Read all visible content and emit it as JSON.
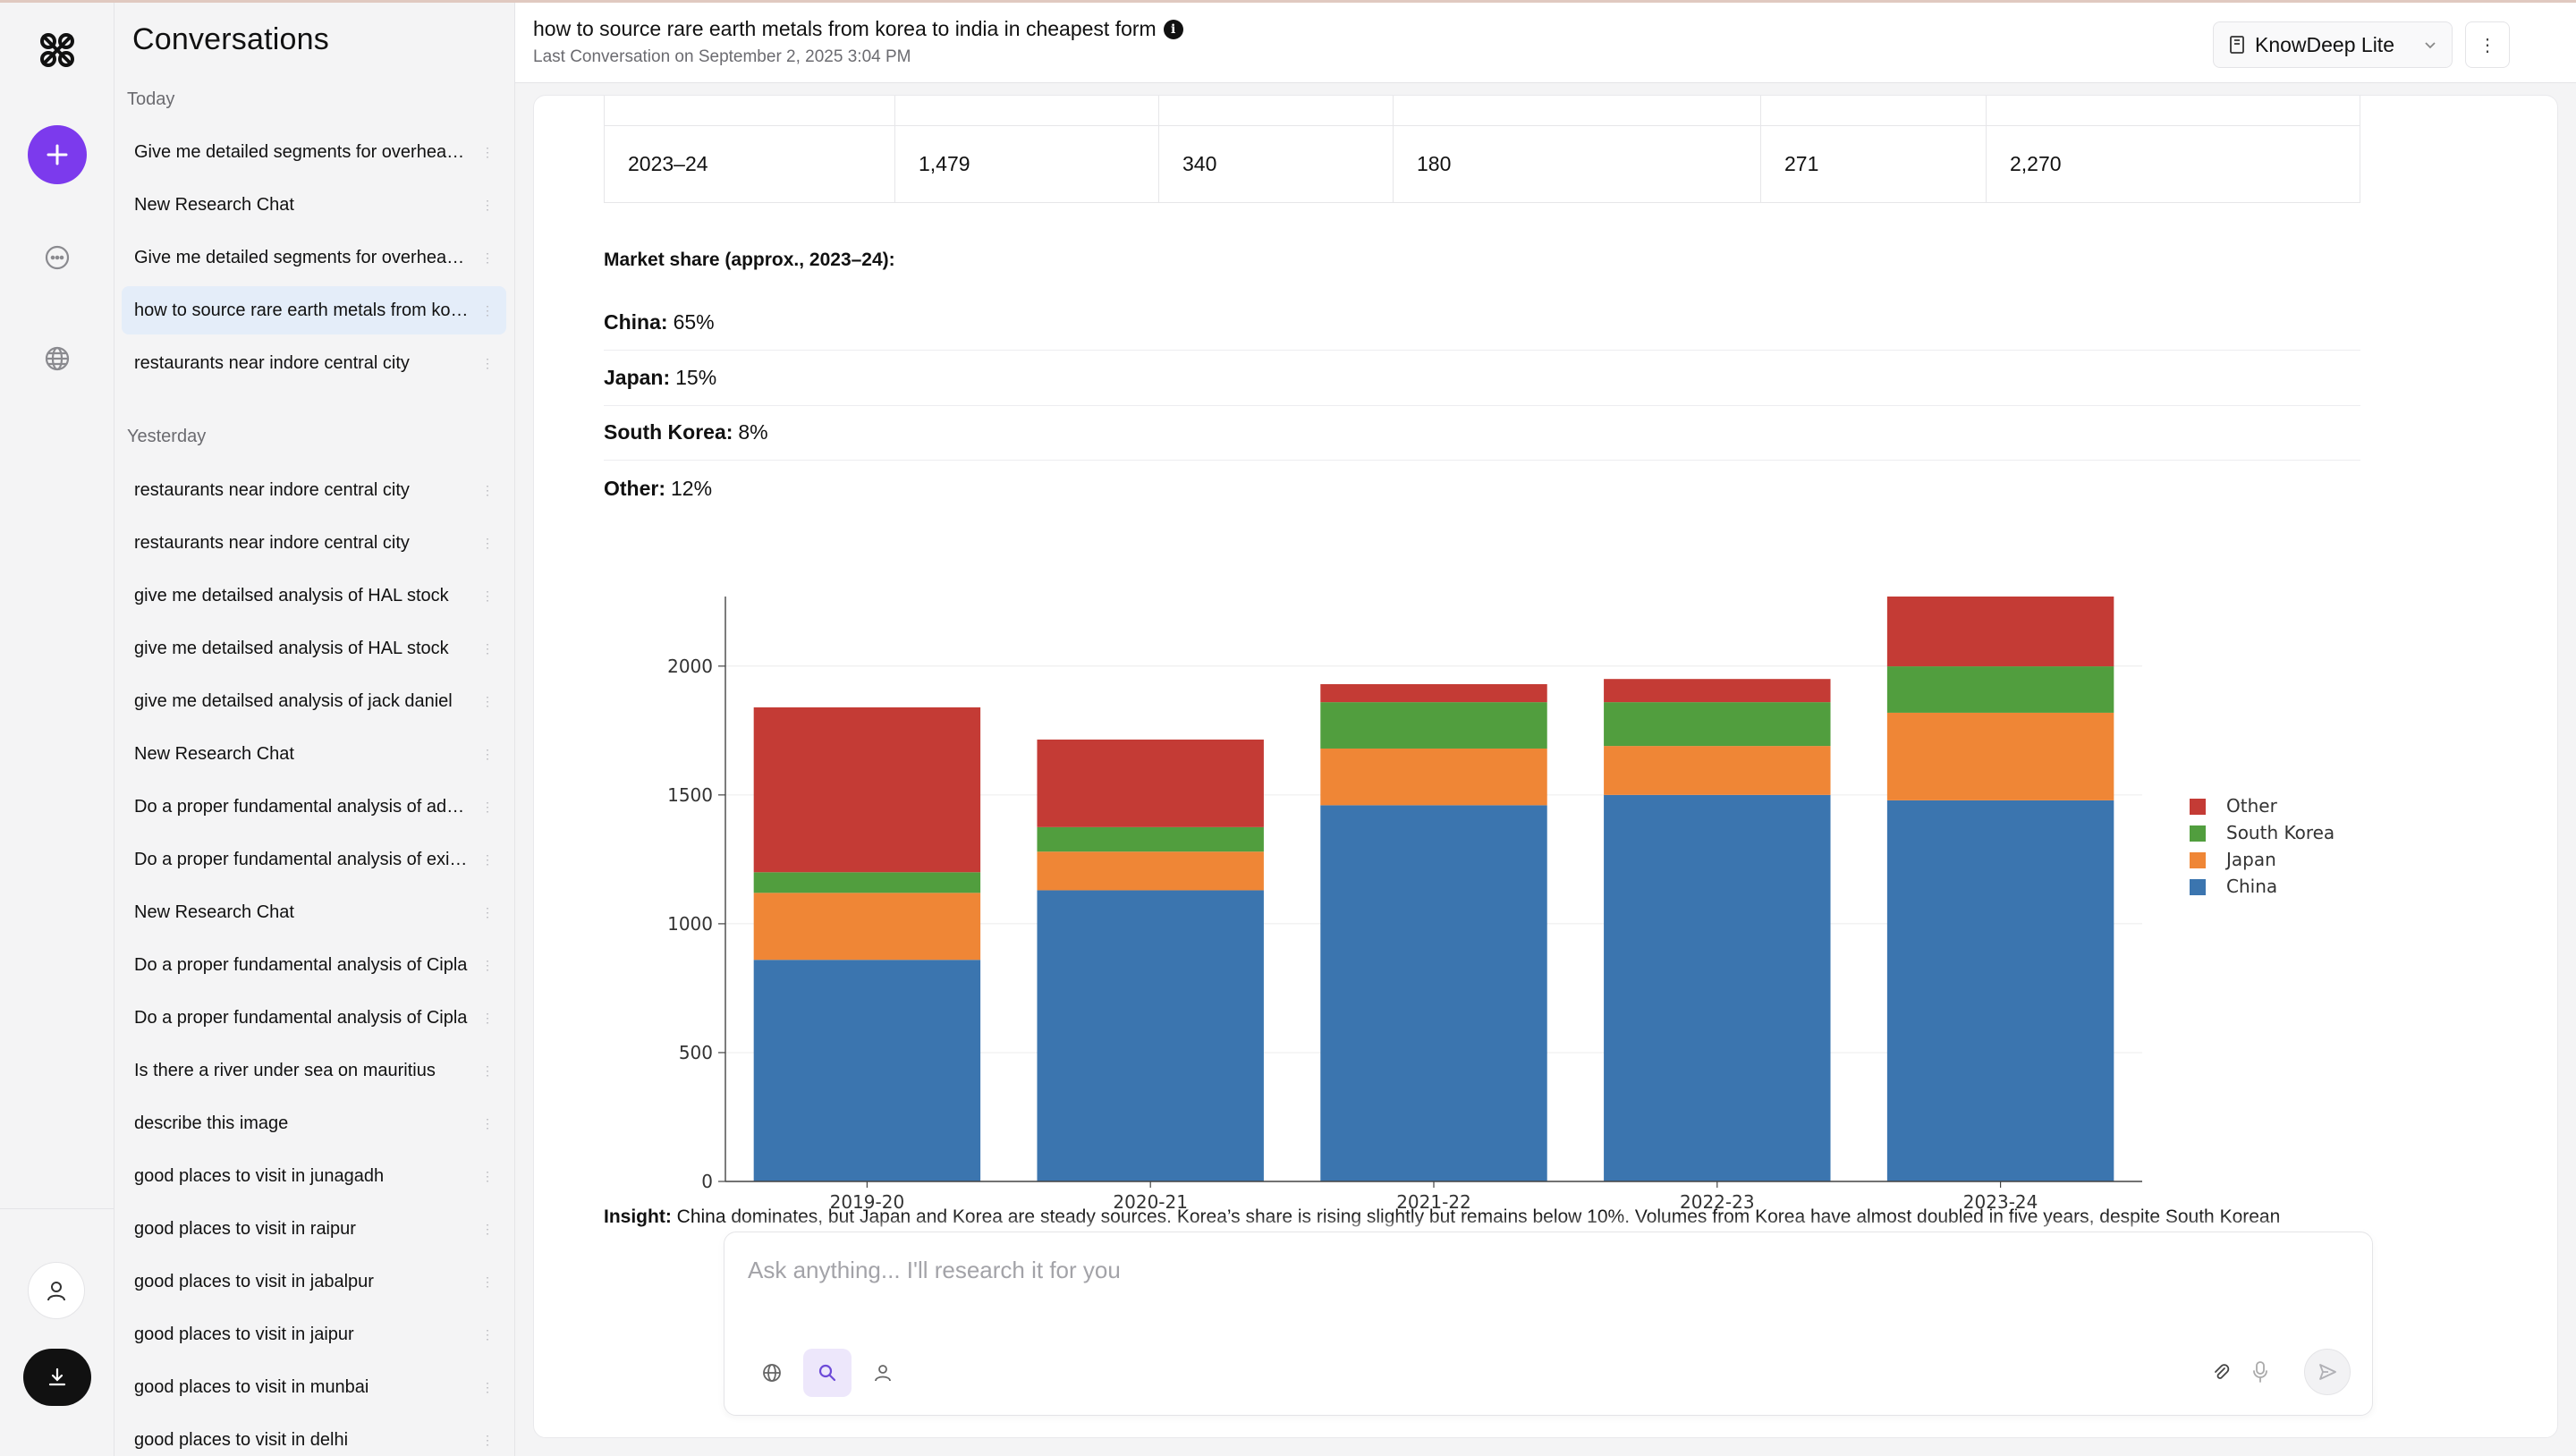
{
  "sidebar": {
    "title": "Conversations",
    "groups": [
      {
        "label": "Today",
        "items": [
          {
            "label": "Give me detailed segments for overhead cranes market"
          },
          {
            "label": "New Research Chat"
          },
          {
            "label": "Give me detailed segments for overhead cranes market"
          },
          {
            "label": "how to source rare earth metals from korea to india in cheapest form",
            "active": true
          },
          {
            "label": "restaurants near indore central city"
          }
        ]
      },
      {
        "label": "Yesterday",
        "items": [
          {
            "label": "restaurants near indore central city"
          },
          {
            "label": "restaurants near indore central city"
          },
          {
            "label": "give me detailsed analysis of HAL stock"
          },
          {
            "label": "give me detailsed analysis of HAL stock"
          },
          {
            "label": "give me detailsed analysis of jack daniel"
          },
          {
            "label": "New Research Chat"
          },
          {
            "label": "Do a proper fundamental analysis of adani ports"
          },
          {
            "label": "Do a proper fundamental analysis of exide industries"
          },
          {
            "label": "New Research Chat"
          },
          {
            "label": "Do a proper fundamental analysis of Cipla"
          },
          {
            "label": "Do a proper fundamental analysis of Cipla"
          },
          {
            "label": "Is there a river under sea on mauritius"
          },
          {
            "label": "describe this image"
          },
          {
            "label": "good places to visit in junagadh"
          },
          {
            "label": "good places to visit in raipur"
          },
          {
            "label": "good places to visit in jabalpur"
          },
          {
            "label": "good places to visit in jaipur"
          },
          {
            "label": "good places to visit in munbai"
          },
          {
            "label": "good places to visit in delhi"
          }
        ]
      }
    ]
  },
  "header": {
    "title": "how to source rare earth metals from korea to india in cheapest form",
    "subtitle": "Last Conversation on September 2, 2025 3:04 PM",
    "model": "KnowDeep Lite"
  },
  "table": {
    "rows": [
      [
        "2023–24",
        "1,479",
        "340",
        "180",
        "271",
        "2,270"
      ]
    ]
  },
  "market_share": {
    "title": "Market share (approx., 2023–24):",
    "items": [
      {
        "name": "China:",
        "value": "65%"
      },
      {
        "name": "Japan:",
        "value": "15%"
      },
      {
        "name": "South Korea:",
        "value": "8%"
      },
      {
        "name": "Other:",
        "value": "12%"
      }
    ]
  },
  "chart_data": {
    "type": "bar",
    "stacked": true,
    "categories": [
      "2019-20",
      "2020-21",
      "2021-22",
      "2022-23",
      "2023-24"
    ],
    "series": [
      {
        "name": "China",
        "color": "#3b75af",
        "values": [
          860,
          1130,
          1460,
          1500,
          1479
        ]
      },
      {
        "name": "Japan",
        "color": "#ef8636",
        "values": [
          260,
          150,
          220,
          190,
          340
        ]
      },
      {
        "name": "South Korea",
        "color": "#519e3e",
        "values": [
          80,
          95,
          180,
          170,
          180
        ]
      },
      {
        "name": "Other",
        "color": "#c43b35",
        "values": [
          640,
          340,
          70,
          90,
          271
        ]
      }
    ],
    "ylim": [
      0,
      2270
    ],
    "yticks": [
      "0",
      "500",
      "1000",
      "1500",
      "2000"
    ],
    "grid": true,
    "legend": "top-right"
  },
  "insight": {
    "label": "Insight:",
    "text": "China dominates, but Japan and Korea are steady sources. Korea’s share is rising slightly but remains below 10%. Volumes from Korea have almost doubled in five years, despite South Korean"
  },
  "composer": {
    "placeholder": "Ask anything... I'll research it for you"
  }
}
